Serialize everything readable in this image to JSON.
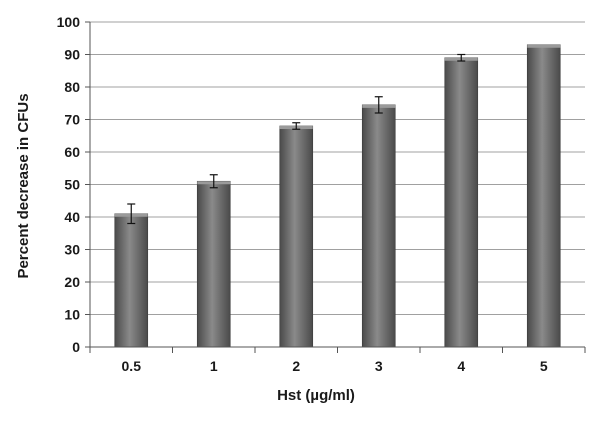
{
  "chart_data": {
    "type": "bar",
    "title": "",
    "xlabel": "Hst (µg/ml)",
    "ylabel": "Percent decrease in CFUs",
    "categories": [
      "0.5",
      "1",
      "2",
      "3",
      "4",
      "5"
    ],
    "values": [
      41,
      51,
      68,
      74.5,
      89,
      93
    ],
    "errors": [
      3,
      2,
      1,
      2.5,
      1,
      0
    ],
    "ylim": [
      0,
      100
    ],
    "yticks": [
      0,
      10,
      20,
      30,
      40,
      50,
      60,
      70,
      80,
      90,
      100
    ],
    "grid": true,
    "legend": "none",
    "colors": {
      "bar_dark": "#4a4a4a",
      "bar_light": "#8a8a8a",
      "grid": "#a0a0a0",
      "axis": "#555555"
    }
  }
}
